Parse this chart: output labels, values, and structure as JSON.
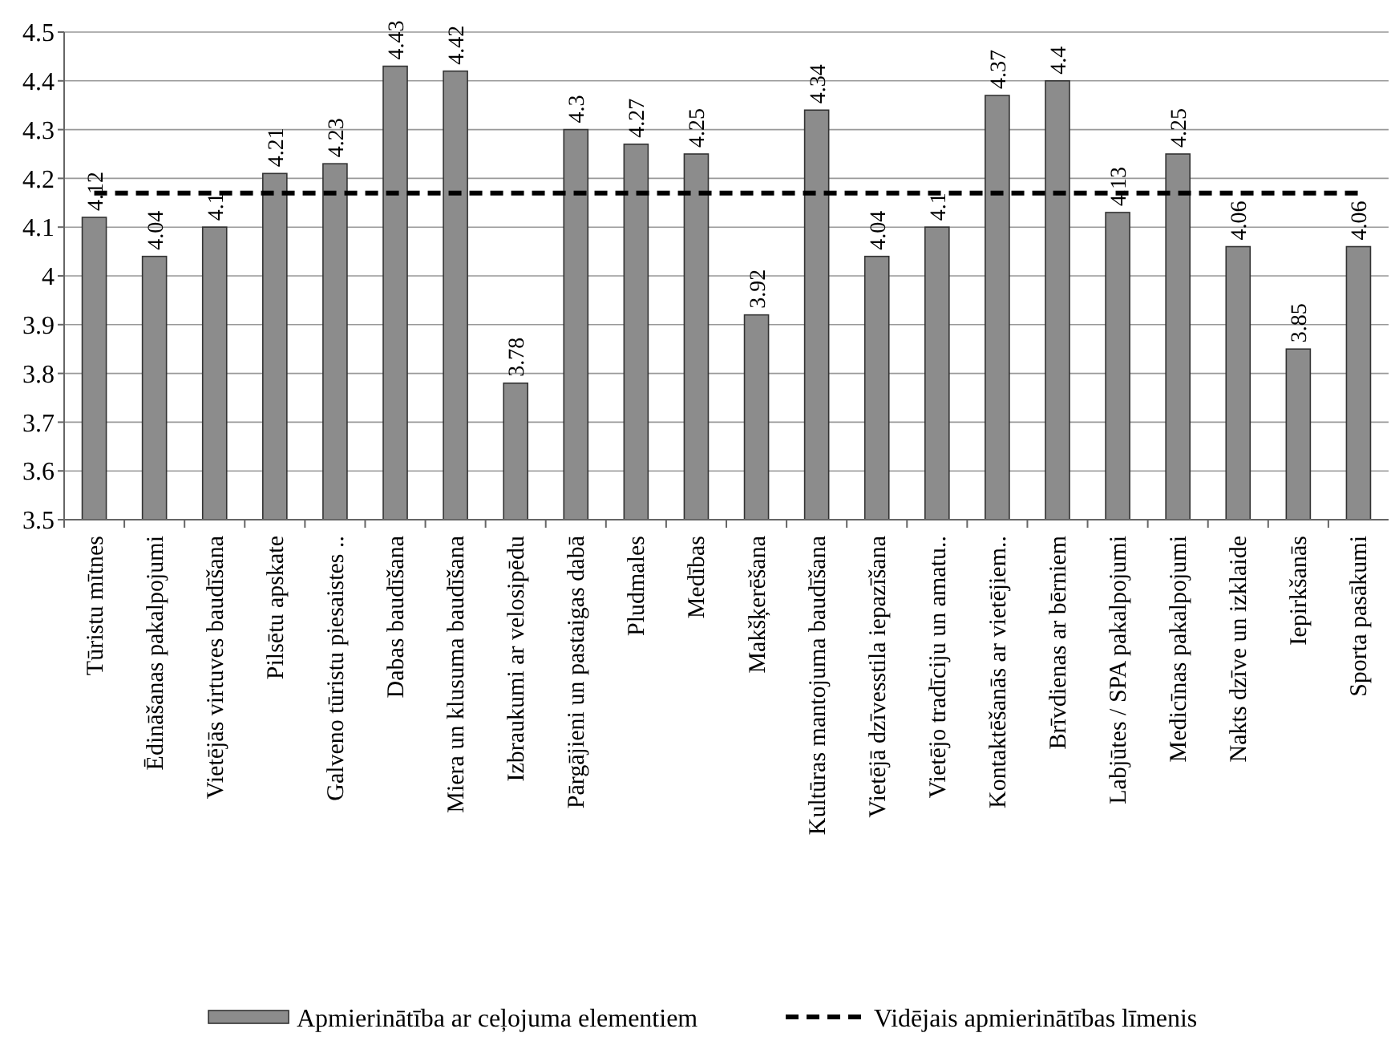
{
  "chart_data": {
    "type": "bar",
    "categories": [
      "Tūristu mītnes",
      "Ēdināšanas pakalpojumi",
      "Vietējās virtuves baudīšana",
      "Pilsētu apskate",
      "Galveno tūristu piesaistes ..",
      "Dabas baudīšana",
      "Miera un klusuma baudīšana",
      "Izbraukumi ar velosipēdu",
      "Pārgājieni un pastaigas dabā",
      "Pludmales",
      "Medības",
      "Makšķerēšana",
      "Kultūras mantojuma baudīšana",
      "Vietējā dzīvesstila iepazīšana",
      "Vietējo tradīciju un amatu..",
      "Kontaktēšanās ar vietējiem..",
      "Brīvdienas ar bērniem",
      "Labjūtes / SPA pakalpojumi",
      "Medicīnas pakalpojumi",
      "Nakts dzīve un izklaide",
      "Iepirkšanās",
      "Sporta pasākumi"
    ],
    "series": [
      {
        "name": "Apmierinātība ar ceļojuma elementiem",
        "color": "#8c8c8c",
        "values": [
          4.12,
          4.04,
          4.1,
          4.21,
          4.23,
          4.43,
          4.42,
          3.78,
          4.3,
          4.27,
          4.25,
          3.92,
          4.34,
          4.04,
          4.1,
          4.37,
          4.4,
          4.13,
          4.25,
          4.06,
          3.85,
          4.06
        ],
        "value_labels": [
          "4.12",
          "4.04",
          "4.1",
          "4.21",
          "4.23",
          "4.43",
          "4.42",
          "3.78",
          "4.3",
          "4.27",
          "4.25",
          "3.92",
          "4.34",
          "4.04",
          "4.1",
          "4.37",
          "4.4",
          "4.13",
          "4.25",
          "4.06",
          "3.85",
          "4.06"
        ]
      },
      {
        "name": "Vidējais apmierinātības līmenis",
        "type": "line",
        "color": "#000000",
        "line_style": "dashed",
        "marker": "none",
        "values": [
          4.17,
          4.17,
          4.17,
          4.17,
          4.17,
          4.17,
          4.17,
          4.17,
          4.17,
          4.17,
          4.17,
          4.17,
          4.17,
          4.17,
          4.17,
          4.17,
          4.17,
          4.17,
          4.17,
          4.17,
          4.17,
          4.17
        ]
      }
    ],
    "ylim": [
      3.5,
      4.5
    ],
    "yticks": [
      3.5,
      3.6,
      3.7,
      3.8,
      3.9,
      {
        "value": 4,
        "label": "4"
      },
      4.1,
      4.2,
      4.3,
      4.4,
      4.5
    ],
    "grid": "y",
    "legend": "bottom"
  }
}
